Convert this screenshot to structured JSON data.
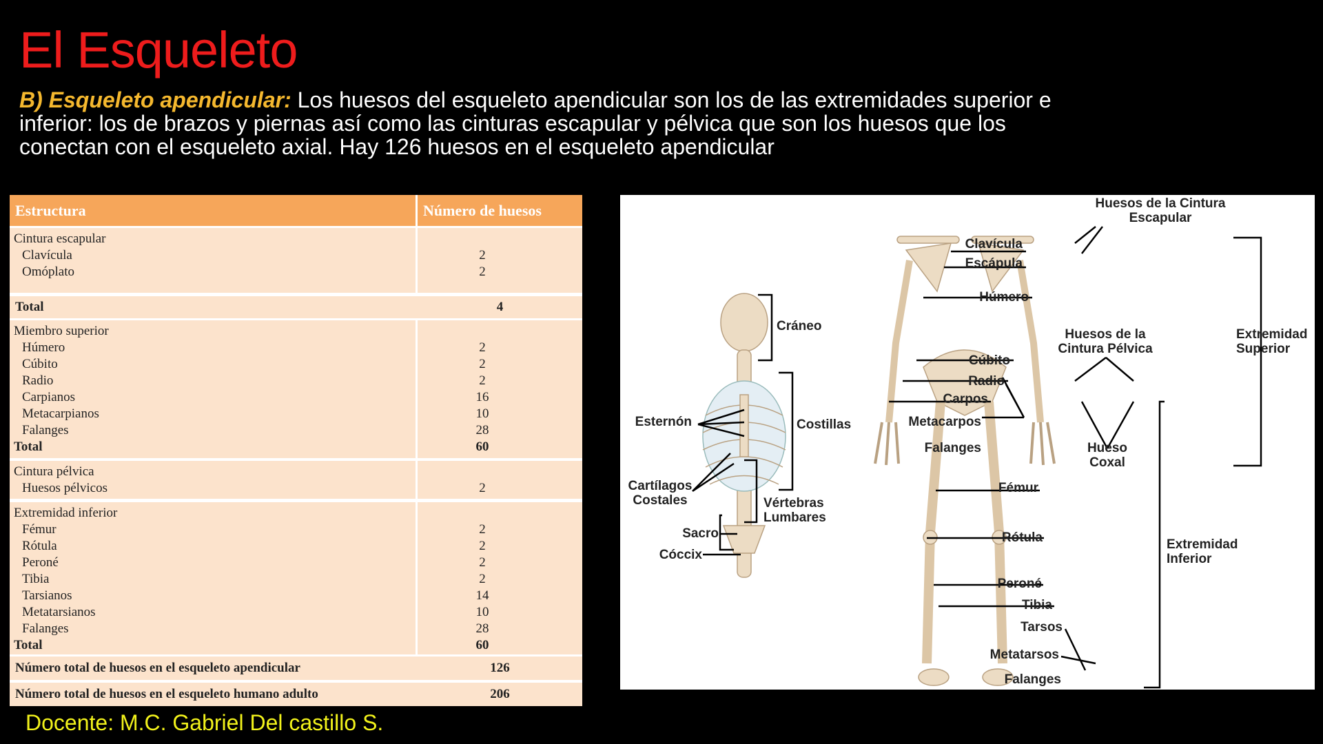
{
  "title": "El Esqueleto",
  "paragraph": {
    "lead": "B) Esqueleto apendicular:",
    "text": " Los huesos del esqueleto apendicular son los de las extremidades superior e inferior: los de brazos y piernas así como las cinturas escapular y pélvica que son los huesos que los conectan con el esqueleto axial. Hay 126 huesos en el esqueleto apendicular"
  },
  "table": {
    "headers": [
      "Estructura",
      "Número de huesos"
    ],
    "groups": [
      {
        "name": "Cintura escapular",
        "items": [
          {
            "n": "Clavícula",
            "v": "2"
          },
          {
            "n": "Omóplato",
            "v": "2"
          }
        ]
      },
      {
        "name": "Miembro superior",
        "items": [
          {
            "n": "Húmero",
            "v": "2"
          },
          {
            "n": "Cúbito",
            "v": "2"
          },
          {
            "n": "Radio",
            "v": "2"
          },
          {
            "n": "Carpianos",
            "v": "16"
          },
          {
            "n": "Metacarpianos",
            "v": "10"
          },
          {
            "n": "Falanges",
            "v": "28"
          }
        ],
        "total": "60"
      },
      {
        "name": "Cintura pélvica",
        "items": [
          {
            "n": "Huesos pélvicos",
            "v": "2"
          }
        ]
      },
      {
        "name": "Extremidad inferior",
        "items": [
          {
            "n": "Fémur",
            "v": "2"
          },
          {
            "n": "Rótula",
            "v": "2"
          },
          {
            "n": "Peroné",
            "v": "2"
          },
          {
            "n": "Tibia",
            "v": "2"
          },
          {
            "n": "Tarsianos",
            "v": "14"
          },
          {
            "n": "Metatarsianos",
            "v": "10"
          },
          {
            "n": "Falanges",
            "v": "28"
          }
        ],
        "total": "60"
      }
    ],
    "total_label": "Total",
    "total_escapular": "4",
    "sum_apendicular": {
      "label": "Número total de huesos en el esqueleto apendicular",
      "value": "126"
    },
    "sum_adulto": {
      "label": "Número total de huesos en el esqueleto humano adulto",
      "value": "206"
    }
  },
  "diagram": {
    "labels": {
      "cintura_escapular": "Huesos de la Cintura Escapular",
      "clavicula": "Clavícula",
      "escapula": "Escápula",
      "humero": "Húmero",
      "cintura_pelvica": "Huesos de la Cintura Pélvica",
      "ext_superior": "Extremidad Superior",
      "craneo": "Cráneo",
      "cubito": "Cúbito",
      "radio": "Radio",
      "carpos": "Carpos",
      "esternon": "Esternón",
      "costillas": "Costillas",
      "metacarpos": "Metacarpos",
      "falanges_mano": "Falanges",
      "hueso_coxal": "Hueso Coxal",
      "cartilagos": "Cartílagos Costales",
      "femur": "Fémur",
      "vertebras": "Vértebras Lumbares",
      "sacro": "Sacro",
      "rotula": "Rótula",
      "ext_inferior": "Extremidad Inferior",
      "coccix": "Cóccix",
      "perone": "Peroné",
      "tibia": "Tibia",
      "tarsos": "Tarsos",
      "metatarsos": "Metatarsos",
      "falanges_pie": "Falanges"
    }
  },
  "footer": "Docente: M.C. Gabriel Del castillo S.",
  "colors": {
    "title": "#ee1c1c",
    "lead": "#f5b82e",
    "header": "#f6a65a",
    "row": "#fce3cc",
    "footer": "#f2f21b"
  }
}
